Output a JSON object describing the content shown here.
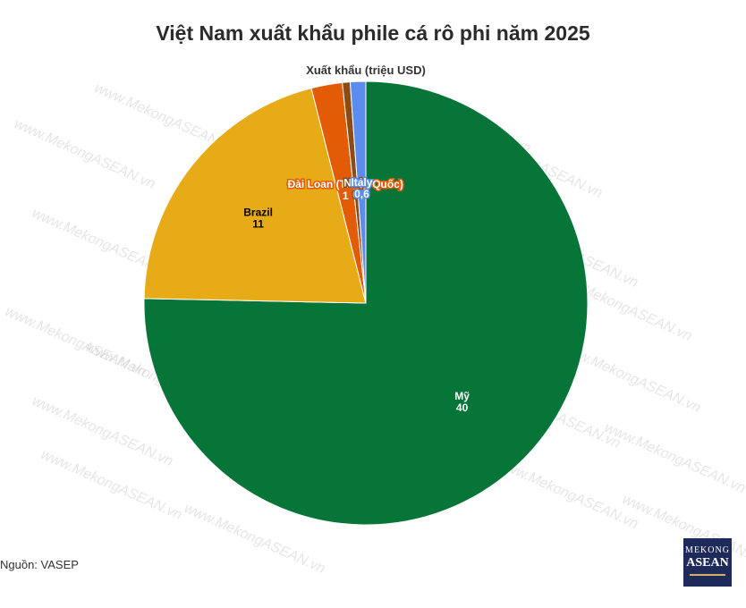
{
  "title": "Việt Nam xuất khẩu phile cá rô phi năm 2025",
  "source": "Nguồn: VASEP",
  "watermark": "www.MekongASEAN.vn",
  "logo": {
    "line1": "MEKONG",
    "line2": "ASEAN"
  },
  "chart_data": {
    "type": "pie",
    "title": "Việt Nam xuất khẩu phile cá rô phi năm 2025",
    "subtitle": "Xuất khẩu (triệu USD)",
    "start_angle_deg": 0,
    "direction": "clockwise",
    "slices": [
      {
        "label": "Mỹ",
        "value": 40,
        "value_text": "40",
        "color": "#087538",
        "text_color": "#ffffff"
      },
      {
        "label": "Brazil",
        "value": 11,
        "value_text": "11",
        "color": "#e6ab16",
        "text_color": "#000000"
      },
      {
        "label": "Đài Loan (Trung Quốc)",
        "value": 1.2,
        "value_text": "1",
        "color": "#e35b04",
        "text_color": "#ffffff"
      },
      {
        "label": "Nhật",
        "value": 0.3,
        "value_text": "0",
        "color": "#8b4b14",
        "text_color": "#ffffff"
      },
      {
        "label": "Italy",
        "value": 0.6,
        "value_text": "0,6",
        "color": "#5b8def",
        "text_color": "#ffffff"
      }
    ]
  }
}
